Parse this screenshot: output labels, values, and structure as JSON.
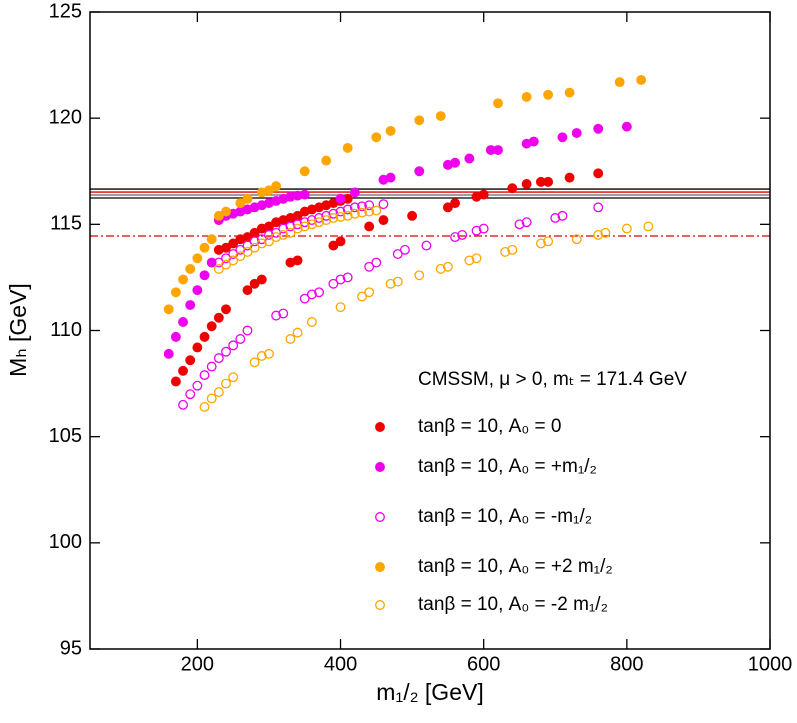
{
  "chart_data": {
    "type": "scatter",
    "xlabel": "m₁/₂ [GeV]",
    "ylabel": "Mₕ [GeV]",
    "xlim": [
      50,
      1000
    ],
    "xticks": [
      200,
      400,
      600,
      800,
      1000
    ],
    "ylim": [
      95,
      125
    ],
    "yticks": [
      95,
      100,
      105,
      110,
      115,
      120,
      125
    ],
    "legend_title": "CMSSM, μ > 0, mₜ = 171.4 GeV",
    "reference_lines": [
      {
        "value": 116.66,
        "color": "#000000",
        "dash": "solid"
      },
      {
        "value": 116.52,
        "color": "#dd0000",
        "dash": "solid"
      },
      {
        "value": 116.38,
        "color": "#666666",
        "dash": "solid"
      },
      {
        "value": 116.24,
        "color": "#000000",
        "dash": "solid"
      },
      {
        "value": 114.45,
        "color": "#dd0000",
        "dash": "dashdot"
      }
    ],
    "series": [
      {
        "name": "tanβ = 10, A₀ = 0",
        "color": "#ee0000",
        "filled": true,
        "x": [
          170,
          180,
          190,
          200,
          210,
          220,
          230,
          240,
          270,
          280,
          290,
          330,
          340,
          390,
          400,
          440,
          460,
          500,
          550,
          560,
          590,
          600,
          640,
          660,
          680,
          690,
          720,
          760,
          230,
          240,
          250,
          260,
          270,
          280,
          290,
          300,
          310,
          320,
          330,
          340,
          350,
          360,
          370,
          380,
          390,
          400,
          410
        ],
        "y": [
          107.6,
          108.1,
          108.6,
          109.2,
          109.7,
          110.2,
          110.6,
          111.0,
          111.9,
          112.2,
          112.4,
          113.2,
          113.3,
          114.0,
          114.2,
          114.9,
          115.2,
          115.4,
          115.8,
          116.0,
          116.3,
          116.4,
          116.7,
          116.9,
          117.0,
          117.0,
          117.2,
          117.4,
          113.8,
          113.9,
          114.1,
          114.3,
          114.4,
          114.6,
          114.8,
          114.9,
          115.1,
          115.2,
          115.3,
          115.4,
          115.6,
          115.7,
          115.8,
          115.9,
          116.0,
          116.1,
          116.2
        ]
      },
      {
        "name": "tanβ = 10, A₀ = +m₁/₂",
        "color": "#ee00ee",
        "filled": true,
        "x": [
          160,
          170,
          180,
          190,
          200,
          210,
          220,
          230,
          240,
          250,
          260,
          270,
          280,
          290,
          300,
          310,
          320,
          330,
          340,
          350,
          400,
          420,
          460,
          470,
          510,
          550,
          560,
          580,
          610,
          620,
          660,
          670,
          710,
          730,
          760,
          800
        ],
        "y": [
          108.9,
          109.7,
          110.4,
          111.2,
          111.9,
          112.6,
          113.2,
          115.2,
          115.4,
          115.5,
          115.6,
          115.7,
          115.8,
          115.9,
          116.0,
          116.1,
          116.2,
          116.3,
          116.35,
          116.4,
          116.2,
          116.5,
          117.1,
          117.2,
          117.5,
          117.8,
          117.9,
          118.1,
          118.5,
          118.5,
          118.8,
          118.9,
          119.1,
          119.3,
          119.5,
          119.6
        ]
      },
      {
        "name": "tanβ = 10, A₀ = -m₁/₂",
        "color": "#ee00ee",
        "filled": false,
        "x": [
          180,
          190,
          200,
          210,
          220,
          230,
          240,
          250,
          260,
          270,
          310,
          320,
          350,
          360,
          370,
          390,
          400,
          410,
          440,
          450,
          480,
          490,
          520,
          560,
          570,
          590,
          600,
          650,
          660,
          700,
          710,
          760,
          230,
          240,
          250,
          260,
          270,
          280,
          290,
          300,
          310,
          320,
          330,
          340,
          350,
          360,
          370,
          380,
          390,
          400,
          410,
          420,
          430,
          440,
          460
        ],
        "y": [
          106.5,
          107.0,
          107.4,
          107.9,
          108.3,
          108.7,
          109.0,
          109.3,
          109.6,
          110.0,
          110.7,
          110.8,
          111.5,
          111.7,
          111.8,
          112.2,
          112.4,
          112.5,
          113.0,
          113.2,
          113.6,
          113.8,
          114.0,
          114.4,
          114.5,
          114.7,
          114.8,
          115.0,
          115.1,
          115.3,
          115.4,
          115.8,
          113.2,
          113.4,
          113.6,
          113.8,
          114.0,
          114.2,
          114.3,
          114.5,
          114.6,
          114.8,
          114.9,
          115.0,
          115.1,
          115.2,
          115.3,
          115.4,
          115.5,
          115.6,
          115.7,
          115.8,
          115.85,
          115.9,
          115.95
        ]
      },
      {
        "name": "tanβ = 10, A₀ = +2 m₁/₂",
        "color": "#ffa500",
        "filled": true,
        "x": [
          160,
          170,
          180,
          190,
          200,
          210,
          220,
          230,
          240,
          260,
          270,
          290,
          300,
          310,
          350,
          380,
          410,
          450,
          470,
          510,
          540,
          620,
          660,
          690,
          720,
          790,
          820
        ],
        "y": [
          111.0,
          111.8,
          112.4,
          112.9,
          113.4,
          113.9,
          114.3,
          115.4,
          115.6,
          116.0,
          116.2,
          116.5,
          116.6,
          116.8,
          117.5,
          118.0,
          118.6,
          119.1,
          119.4,
          119.9,
          120.1,
          120.7,
          121.0,
          121.1,
          121.2,
          121.7,
          121.8
        ]
      },
      {
        "name": "tanβ = 10, A₀ = -2 m₁/₂",
        "color": "#ffa500",
        "filled": false,
        "x": [
          210,
          220,
          230,
          240,
          250,
          280,
          290,
          300,
          330,
          340,
          360,
          400,
          430,
          440,
          470,
          480,
          510,
          540,
          550,
          580,
          590,
          630,
          640,
          680,
          690,
          730,
          760,
          770,
          800,
          830,
          230,
          240,
          250,
          260,
          270,
          280,
          290,
          300,
          310,
          320,
          330,
          340,
          350,
          360,
          370,
          380,
          390,
          400,
          410,
          420,
          430,
          440,
          450
        ],
        "y": [
          106.4,
          106.8,
          107.1,
          107.5,
          107.8,
          108.5,
          108.8,
          108.9,
          109.6,
          109.9,
          110.4,
          111.1,
          111.6,
          111.8,
          112.2,
          112.3,
          112.6,
          112.9,
          113.0,
          113.3,
          113.4,
          113.7,
          113.8,
          114.1,
          114.2,
          114.3,
          114.5,
          114.6,
          114.8,
          114.9,
          112.9,
          113.1,
          113.3,
          113.5,
          113.7,
          113.9,
          114.1,
          114.2,
          114.4,
          114.5,
          114.6,
          114.8,
          114.9,
          115.0,
          115.1,
          115.2,
          115.3,
          115.35,
          115.4,
          115.5,
          115.55,
          115.6,
          115.65
        ]
      }
    ]
  }
}
